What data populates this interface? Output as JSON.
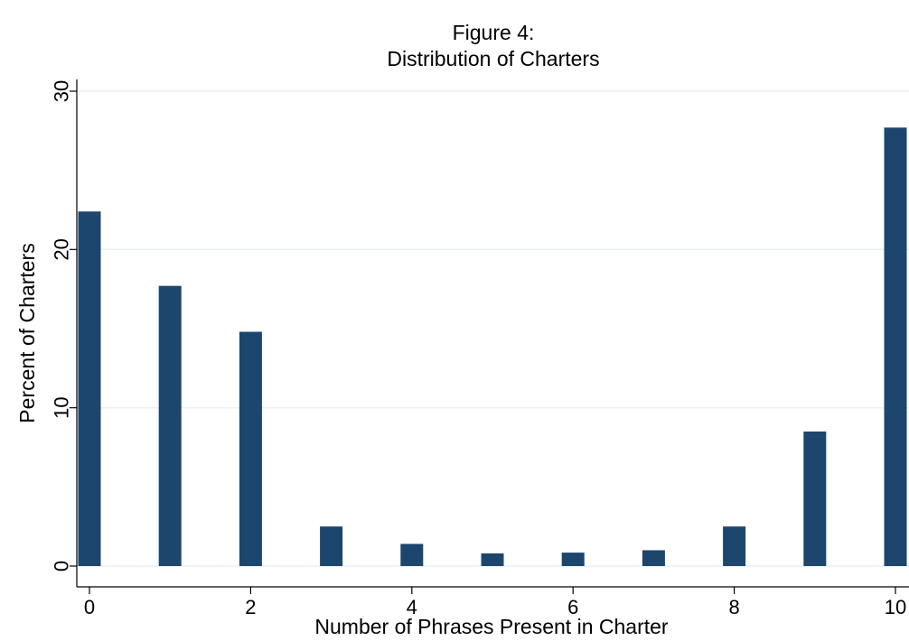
{
  "chart_data": {
    "type": "bar",
    "title": "Figure 4:",
    "subtitle": "Distribution of Charters",
    "xlabel": "Number of Phrases Present in Charter",
    "ylabel": "Percent of Charters",
    "x": [
      0,
      1,
      2,
      3,
      4,
      5,
      6,
      7,
      8,
      9,
      10
    ],
    "values": [
      22.4,
      17.7,
      14.8,
      2.5,
      1.4,
      0.8,
      0.85,
      1.0,
      2.5,
      8.5,
      27.7
    ],
    "xlim": [
      0,
      10
    ],
    "ylim": [
      0,
      30
    ],
    "xticks": [
      0,
      2,
      4,
      6,
      8,
      10
    ],
    "yticks": [
      0,
      10,
      20,
      30
    ],
    "grid": true,
    "bar_color": "#1c466d",
    "grid_color": "#eaf2f3"
  }
}
